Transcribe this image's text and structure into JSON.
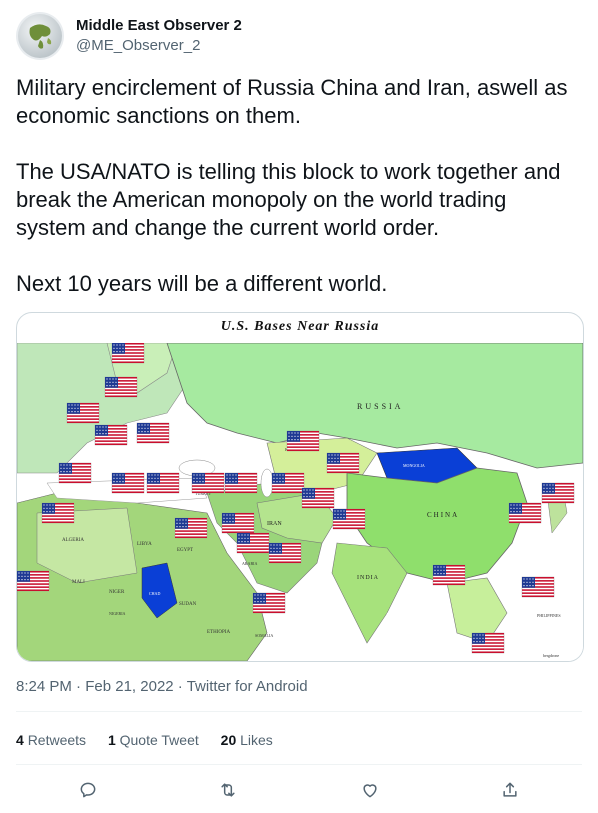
{
  "author": {
    "display_name": "Middle East Observer 2",
    "handle": "@ME_Observer_2",
    "avatar_icon": "globe-avatar-icon"
  },
  "tweet": {
    "text": "Military encirclement of Russia China and Iran, aswell as economic sanctions on them.\n\nThe USA/NATO is telling this block to work together and break the American monopoly on the world trading system and change the current world order.\n\nNext 10 years will be a different world."
  },
  "media": {
    "title": "U.S. Bases Near Russia",
    "labels": {
      "russia": "RUSSIA",
      "china": "CHINA",
      "iran": "IRAN",
      "india": "INDIA",
      "algeria": "ALGERIA",
      "libya": "LIBYA",
      "egypt": "EGYPT",
      "mali": "MALI",
      "niger": "NIGER",
      "sudan": "SUDAN",
      "ethiopia": "ETHIOPIA",
      "somalia": "SOMALIA",
      "kazakhstan": "KAZAKHSTAN",
      "mongolia": "MONGOLIA",
      "turkey": "TURKEY",
      "arabia": "ARABIA",
      "nigeria": "NIGERIA",
      "chad": "CHAD",
      "philippines": "PHILIPPINES",
      "credit": "bergdrone"
    },
    "flag_icon": "us-flag-icon"
  },
  "meta": {
    "time": "8:24 PM",
    "separator": " · ",
    "date": "Feb 21, 2022",
    "source": "Twitter for Android"
  },
  "stats": {
    "retweets_count": "4",
    "retweets_label": "Retweets",
    "quote_count": "1",
    "quote_label": "Quote Tweet",
    "likes_count": "20",
    "likes_label": "Likes"
  },
  "actions": {
    "reply_icon": "reply-icon",
    "retweet_icon": "retweet-icon",
    "like_icon": "heart-icon",
    "share_icon": "share-icon"
  },
  "colors": {
    "text": "#0f1419",
    "secondary": "#536471",
    "border": "#cfd9de",
    "russia_green": "#a6eaa0",
    "china_green": "#8fdf6c",
    "water_blue": "#0a3fd6",
    "ocean": "#ffffff"
  }
}
